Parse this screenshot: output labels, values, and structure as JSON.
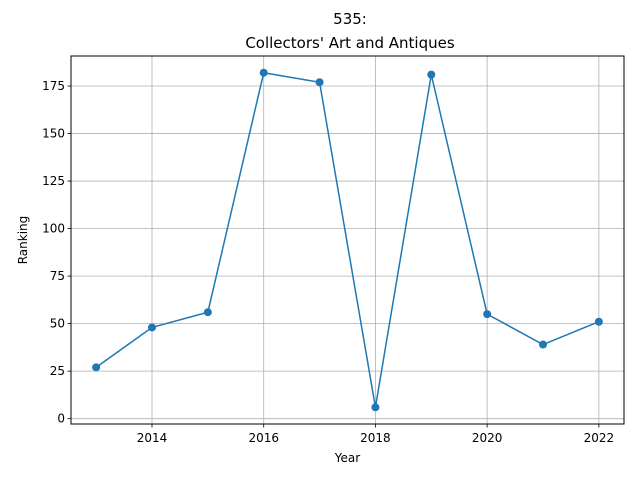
{
  "chart_data": {
    "type": "line",
    "title_line1": "535:",
    "title_line2": "Collectors' Art and Antiques",
    "xlabel": "Year",
    "ylabel": "Ranking",
    "x": [
      2013,
      2014,
      2015,
      2016,
      2017,
      2018,
      2019,
      2020,
      2021,
      2022
    ],
    "series": [
      {
        "values": [
          27,
          48,
          56,
          182,
          177,
          6,
          181,
          55,
          39,
          51
        ],
        "color": "#1f77b4"
      }
    ],
    "xlim": [
      2012.55,
      2022.45
    ],
    "ylim": [
      -2.8,
      190.8
    ],
    "xticks": [
      2014,
      2016,
      2018,
      2020,
      2022
    ],
    "yticks": [
      0,
      25,
      50,
      75,
      100,
      125,
      150,
      175
    ],
    "grid": true
  }
}
